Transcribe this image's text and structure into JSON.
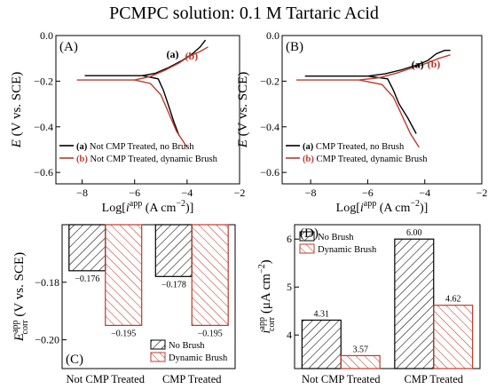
{
  "title": "PCMPC solution: 0.1 M Tartaric Acid",
  "colors": {
    "black": "#000000",
    "red": "#c0392b"
  },
  "chart_data": [
    {
      "type": "line",
      "panel": "(A)",
      "xlabel": "Log[i app (A cm⁻²)]",
      "ylabel": "E (V vs. SCE)",
      "xlim": [
        -9,
        -2
      ],
      "ylim": [
        -0.65,
        0
      ],
      "xticks": [
        "-8",
        "-6",
        "-4",
        "-2"
      ],
      "yticks": [
        "0.0",
        "-0.2",
        "-0.4",
        "-0.6"
      ],
      "curve_labels": [
        "(a)",
        "(b)"
      ],
      "legend": [
        {
          "tag": "(a)",
          "text": "Not CMP Treated, no Brush",
          "color": "#000000"
        },
        {
          "tag": "(b)",
          "text": "Not CMP Treated, dynamic Brush",
          "color": "#c0392b"
        }
      ],
      "series": [
        {
          "label": "a",
          "color": "#000000",
          "anodic": [
            [
              -5.7,
              -0.176
            ],
            [
              -5.2,
              -0.165
            ],
            [
              -4.7,
              -0.14
            ],
            [
              -4.2,
              -0.11
            ],
            [
              -3.8,
              -0.08
            ],
            [
              -3.5,
              -0.05
            ],
            [
              -3.3,
              -0.02
            ]
          ],
          "cathodic": [
            [
              -5.7,
              -0.176
            ],
            [
              -5.1,
              -0.19
            ],
            [
              -4.9,
              -0.24
            ],
            [
              -4.7,
              -0.31
            ],
            [
              -4.5,
              -0.38
            ],
            [
              -4.3,
              -0.44
            ]
          ]
        },
        {
          "label": "b",
          "color": "#c0392b",
          "anodic": [
            [
              -6.0,
              -0.195
            ],
            [
              -5.4,
              -0.18
            ],
            [
              -4.8,
              -0.15
            ],
            [
              -4.3,
              -0.12
            ],
            [
              -3.9,
              -0.09
            ],
            [
              -3.5,
              -0.07
            ],
            [
              -3.2,
              -0.05
            ]
          ],
          "cathodic": [
            [
              -6.0,
              -0.195
            ],
            [
              -5.4,
              -0.21
            ],
            [
              -5.0,
              -0.26
            ],
            [
              -4.7,
              -0.34
            ],
            [
              -4.4,
              -0.42
            ],
            [
              -4.0,
              -0.49
            ]
          ]
        }
      ]
    },
    {
      "type": "line",
      "panel": "(B)",
      "xlabel": "Log[i app (A cm⁻²)]",
      "ylabel": "E (V vs. SCE)",
      "xlim": [
        -9,
        -2
      ],
      "ylim": [
        -0.65,
        0
      ],
      "xticks": [
        "-8",
        "-6",
        "-4",
        "-2"
      ],
      "yticks": [
        "0.0",
        "-0.2",
        "-0.4",
        "-0.6"
      ],
      "curve_labels": [
        "(a)",
        "(b)"
      ],
      "legend": [
        {
          "tag": "(a)",
          "text": "CMP Treated, no Brush",
          "color": "#000000"
        },
        {
          "tag": "(b)",
          "text": "CMP Treated, dynamic Brush",
          "color": "#c0392b"
        }
      ],
      "series": [
        {
          "label": "a",
          "color": "#000000",
          "anodic": [
            [
              -6.0,
              -0.178
            ],
            [
              -5.4,
              -0.168
            ],
            [
              -4.8,
              -0.15
            ],
            [
              -4.3,
              -0.13
            ],
            [
              -3.9,
              -0.11
            ],
            [
              -3.6,
              -0.08
            ],
            [
              -3.3,
              -0.065
            ],
            [
              -3.1,
              -0.065
            ]
          ],
          "cathodic": [
            [
              -6.0,
              -0.178
            ],
            [
              -5.3,
              -0.19
            ],
            [
              -5.1,
              -0.24
            ],
            [
              -4.9,
              -0.3
            ],
            [
              -4.6,
              -0.36
            ],
            [
              -4.3,
              -0.43
            ]
          ]
        },
        {
          "label": "b",
          "color": "#c0392b",
          "anodic": [
            [
              -6.3,
              -0.195
            ],
            [
              -5.6,
              -0.185
            ],
            [
              -5.0,
              -0.165
            ],
            [
              -4.4,
              -0.14
            ],
            [
              -3.9,
              -0.12
            ],
            [
              -3.5,
              -0.1
            ],
            [
              -3.1,
              -0.085
            ]
          ],
          "cathodic": [
            [
              -6.3,
              -0.195
            ],
            [
              -5.5,
              -0.215
            ],
            [
              -5.1,
              -0.27
            ],
            [
              -4.8,
              -0.35
            ],
            [
              -4.5,
              -0.43
            ],
            [
              -4.2,
              -0.49
            ]
          ]
        }
      ]
    },
    {
      "type": "bar",
      "panel": "(C)",
      "categories": [
        "Not CMP Treated",
        "CMP Treated"
      ],
      "ylabel": "E corr app (V vs. SCE)",
      "ylim": [
        -0.21,
        -0.16
      ],
      "yticks": [
        "-0.18",
        "-0.20"
      ],
      "bar_baseline": -0.16,
      "series": [
        {
          "name": "No Brush",
          "color": "#000000",
          "values": [
            -0.176,
            -0.178
          ],
          "labels": [
            "−0.176",
            "−0.178"
          ]
        },
        {
          "name": "Dynamic Brush",
          "color": "#c0392b",
          "values": [
            -0.195,
            -0.195
          ],
          "labels": [
            "−0.195",
            "−0.195"
          ]
        }
      ],
      "legend_position": "bottom-right"
    },
    {
      "type": "bar",
      "panel": "(D)",
      "categories": [
        "Not CMP Treated",
        "CMP Treated"
      ],
      "ylabel": "i corr app (μA cm⁻²)",
      "ylim": [
        3.3,
        6.3
      ],
      "yticks": [
        "4",
        "5",
        "6"
      ],
      "bar_baseline": 3.3,
      "series": [
        {
          "name": "No Brush",
          "color": "#000000",
          "values": [
            4.31,
            6.0
          ],
          "labels": [
            "4.31",
            "6.00"
          ]
        },
        {
          "name": "Dynamic Brush",
          "color": "#c0392b",
          "values": [
            3.57,
            4.62
          ],
          "labels": [
            "3.57",
            "4.62"
          ]
        }
      ],
      "legend_position": "top-left"
    }
  ]
}
